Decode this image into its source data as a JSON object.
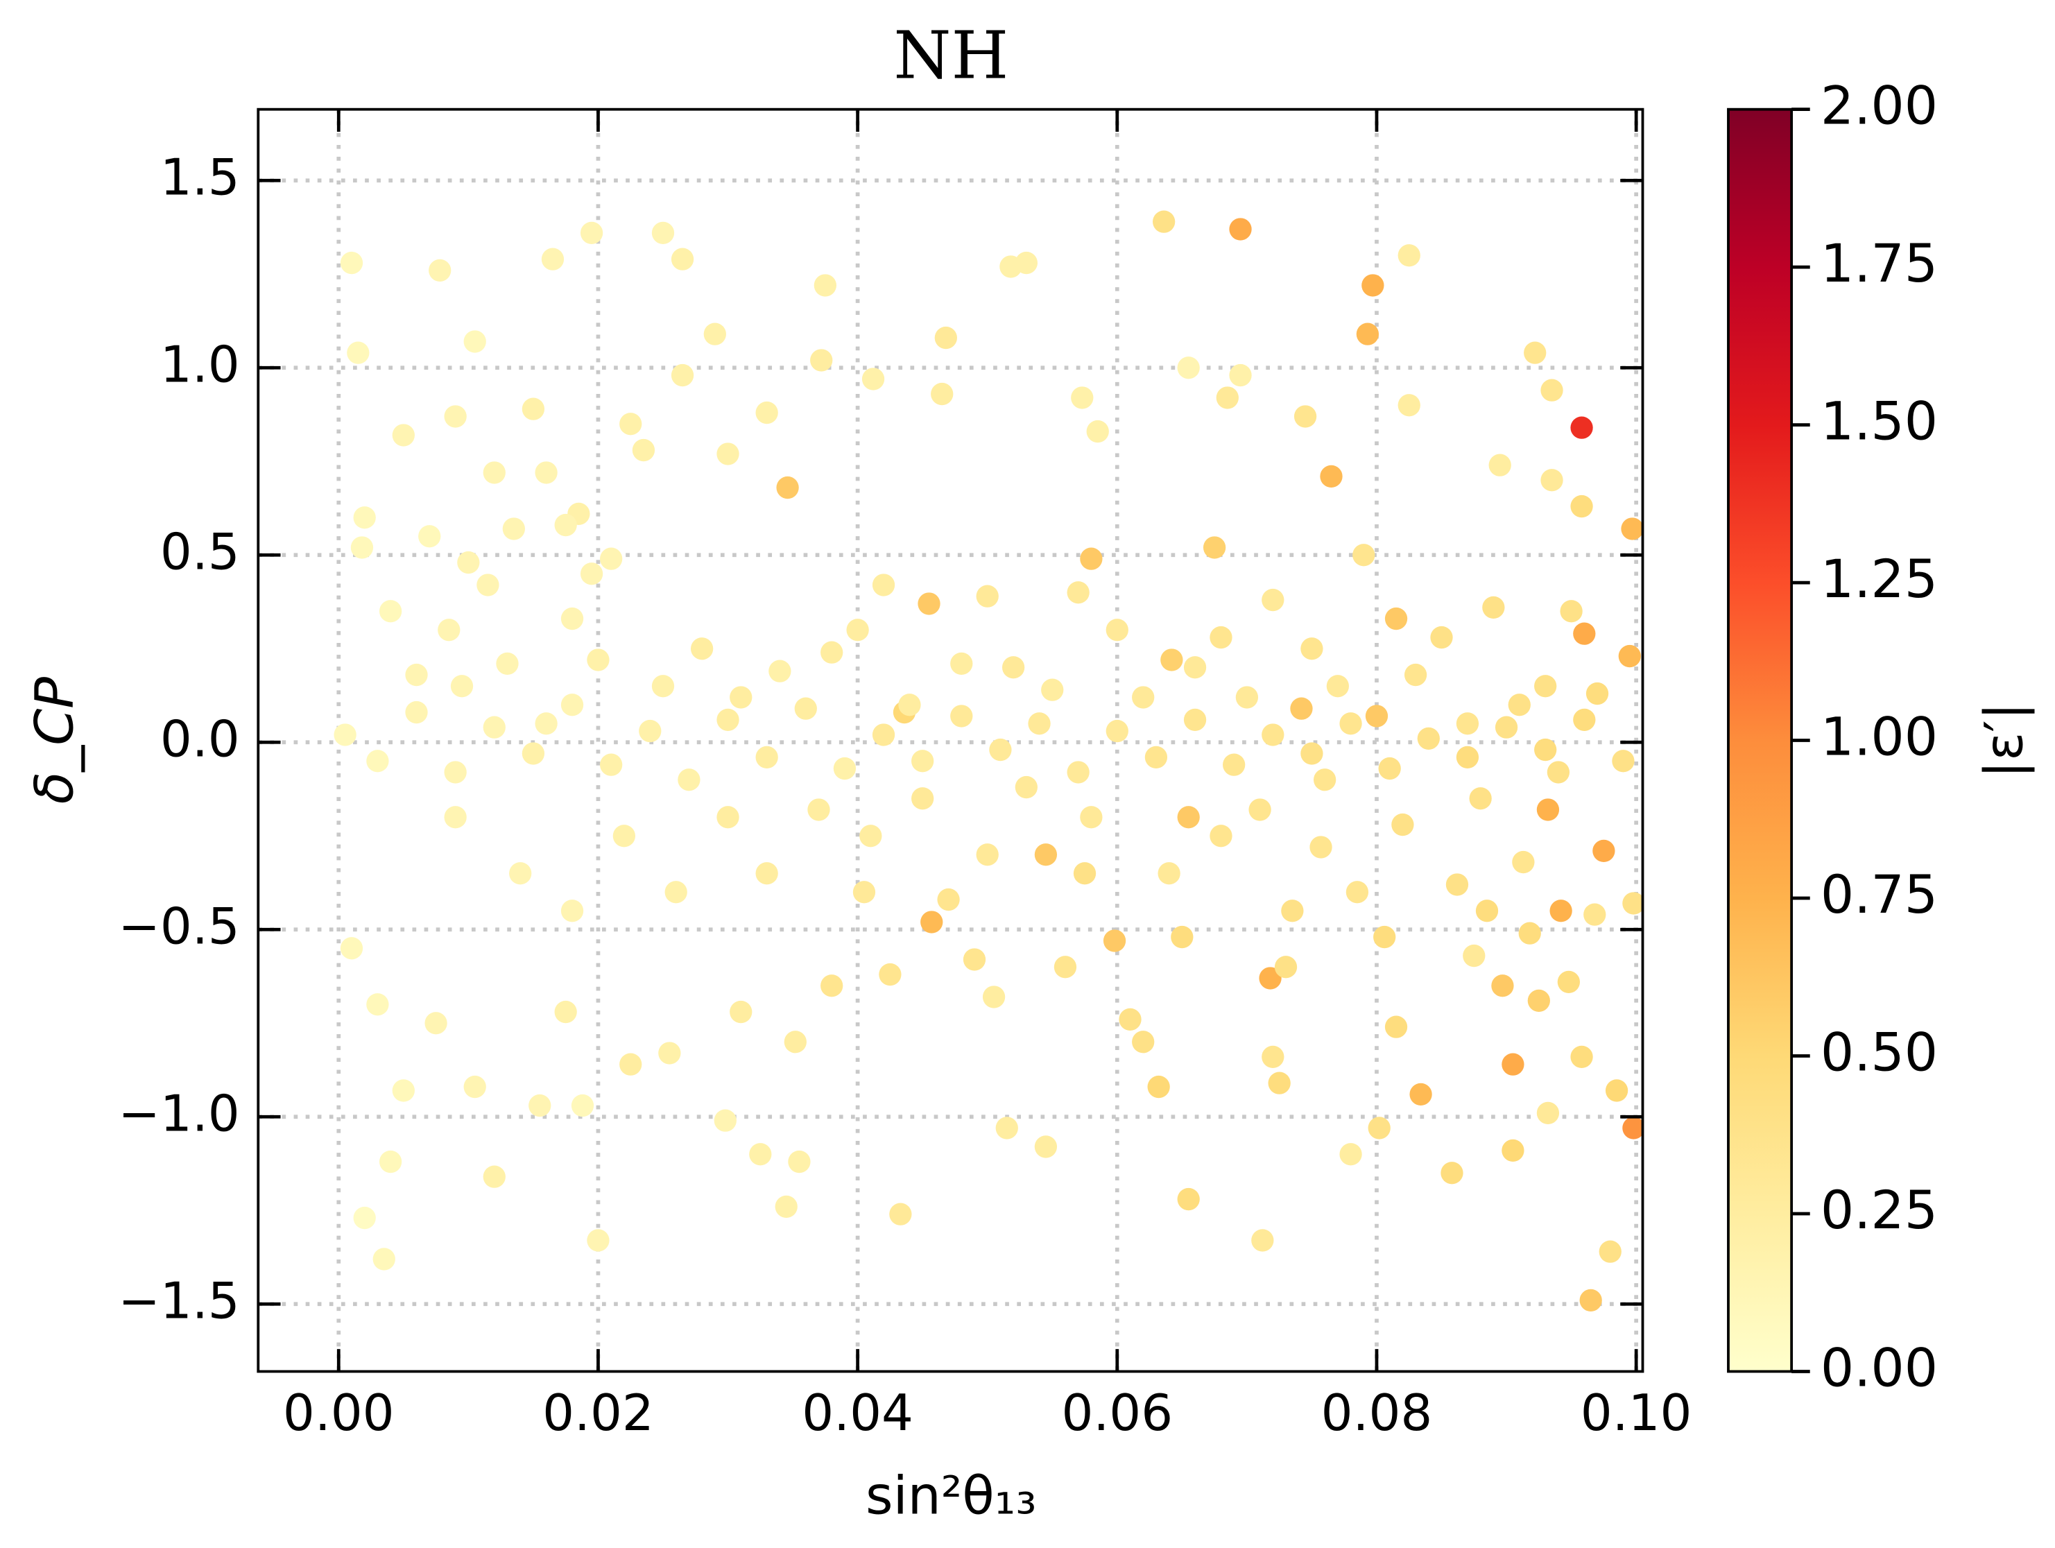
{
  "chart_data": {
    "type": "scatter",
    "title": "NH",
    "x_label": "sin²θ₁₃",
    "y_label": "δ_CP",
    "xlim": [
      -0.0062,
      0.1005
    ],
    "ylim": [
      -1.68,
      1.69
    ],
    "xticks": [
      {
        "value": 0,
        "label": "0.00"
      },
      {
        "value": 0.02,
        "label": "0.02"
      },
      {
        "value": 0.04,
        "label": "0.04"
      },
      {
        "value": 0.06,
        "label": "0.06"
      },
      {
        "value": 0.08,
        "label": "0.08"
      },
      {
        "value": 0.1,
        "label": "0.10"
      }
    ],
    "yticks": [
      {
        "value": -1.5,
        "label": "−1.5"
      },
      {
        "value": -1,
        "label": "−1.0"
      },
      {
        "value": -0.5,
        "label": "−0.5"
      },
      {
        "value": 0,
        "label": "0.0"
      },
      0.5,
      {
        "value": 1,
        "label": "1.0"
      },
      1.5
    ],
    "grid": true,
    "colorbar": {
      "label": "|ε′|",
      "lim": [
        0,
        2
      ],
      "ticks": [
        {
          "value": 0,
          "label": "0.00"
        },
        {
          "value": 0.25,
          "label": "0.25"
        },
        {
          "value": 0.5,
          "label": "0.50"
        },
        {
          "value": 0.75,
          "label": "0.75"
        },
        {
          "value": 1,
          "label": "1.00"
        },
        {
          "value": 1.25,
          "label": "1.25"
        },
        {
          "value": 1.5,
          "label": "1.50"
        },
        {
          "value": 1.75,
          "label": "1.75"
        },
        {
          "value": 2,
          "label": "2.00"
        }
      ],
      "colormap": [
        "#ffffcc",
        "#ffeda0",
        "#fed976",
        "#feb24c",
        "#fd8d3c",
        "#fc4e2a",
        "#e31a1c",
        "#bd0026",
        "#800026"
      ]
    },
    "series": [
      {
        "x": [
          0.0695,
          0.0797,
          0.0793,
          0.0958,
          0.0636,
          0.0765,
          0.0346,
          0.0455,
          0.0457,
          0.0718,
          0.0834,
          0.0905,
          0.0998,
          0.0965,
          0.0975,
          0.0942,
          0.0932,
          0.096,
          0.0995,
          0.0997,
          0.0897,
          0.0905,
          0.0545,
          0.0598,
          0.0655,
          0.0815,
          0.0675,
          0.058,
          0.0642,
          0.0742,
          0.08,
          0.0436,
          0.001,
          0.0015,
          0.002,
          0.0035,
          0.0078,
          0.0105,
          0.0195,
          0.025,
          0.0265,
          0.0165,
          0.0265,
          0.029,
          0.0375,
          0.0372,
          0.03,
          0.033,
          0.0412,
          0.0465,
          0.0468,
          0.0518,
          0.053,
          0.0573,
          0.0585,
          0.0655,
          0.0685,
          0.0695,
          0.0745,
          0.0825,
          0.0825,
          0.0922,
          0.0935,
          0.0895,
          0.0958,
          0.0935,
          0.0018,
          0.005,
          0.009,
          0.012,
          0.015,
          0.0185,
          0.0225,
          0.0235,
          0.0115,
          0.0135,
          0.018,
          0.0085,
          0.004,
          0.006,
          0.0095,
          0.013,
          0.016,
          0.02,
          0.025,
          0.028,
          0.031,
          0.034,
          0.038,
          0.04,
          0.042,
          0.044,
          0.048,
          0.05,
          0.052,
          0.055,
          0.057,
          0.06,
          0.062,
          0.066,
          0.068,
          0.07,
          0.072,
          0.075,
          0.077,
          0.079,
          0.083,
          0.085,
          0.087,
          0.089,
          0.091,
          0.093,
          0.095,
          0.097,
          0.0005,
          0.003,
          0.006,
          0.009,
          0.012,
          0.015,
          0.018,
          0.021,
          0.024,
          0.027,
          0.03,
          0.033,
          0.036,
          0.039,
          0.042,
          0.045,
          0.048,
          0.051,
          0.054,
          0.057,
          0.06,
          0.063,
          0.066,
          0.069,
          0.072,
          0.075,
          0.078,
          0.081,
          0.084,
          0.087,
          0.09,
          0.093,
          0.096,
          0.099,
          0.001,
          0.003,
          0.005,
          0.004,
          0.0075,
          0.0105,
          0.012,
          0.0155,
          0.0175,
          0.0188,
          0.02,
          0.0225,
          0.0255,
          0.0298,
          0.0325,
          0.0345,
          0.0355,
          0.0433,
          0.0352,
          0.031,
          0.038,
          0.0405,
          0.0425,
          0.047,
          0.049,
          0.0505,
          0.0515,
          0.0545,
          0.056,
          0.0575,
          0.061,
          0.062,
          0.0632,
          0.065,
          0.0655,
          0.0712,
          0.072,
          0.0725,
          0.073,
          0.0735,
          0.0757,
          0.078,
          0.0785,
          0.0802,
          0.0806,
          0.0815,
          0.0858,
          0.0862,
          0.0875,
          0.0885,
          0.0913,
          0.0918,
          0.0925,
          0.0932,
          0.0948,
          0.0958,
          0.098,
          0.0985,
          0.0968,
          0.0998,
          0.009,
          0.014,
          0.018,
          0.022,
          0.026,
          0.03,
          0.033,
          0.037,
          0.041,
          0.045,
          0.05,
          0.053,
          0.058,
          0.064,
          0.068,
          0.071,
          0.076,
          0.082,
          0.088,
          0.094,
          0.002,
          0.007,
          0.01,
          0.016,
          0.0195,
          0.021,
          0.0175
        ],
        "values": [
          1.37,
          1.22,
          1.09,
          0.84,
          1.39,
          0.71,
          0.68,
          0.37,
          -0.48,
          -0.63,
          -0.94,
          -0.86,
          -1.03,
          -1.49,
          -0.29,
          -0.45,
          -0.18,
          0.29,
          0.23,
          0.57,
          -0.65,
          -1.09,
          -0.3,
          -0.53,
          -0.2,
          0.33,
          0.52,
          0.49,
          0.22,
          0.09,
          0.07,
          0.08,
          1.28,
          1.04,
          -1.27,
          -1.38,
          1.26,
          1.07,
          1.36,
          1.36,
          1.29,
          1.29,
          0.98,
          1.09,
          1.22,
          1.02,
          0.77,
          0.88,
          0.97,
          0.93,
          1.08,
          1.27,
          1.28,
          0.92,
          0.83,
          1.0,
          0.92,
          0.98,
          0.87,
          1.3,
          0.9,
          1.04,
          0.94,
          0.74,
          0.63,
          0.7,
          0.52,
          0.82,
          0.87,
          0.72,
          0.89,
          0.61,
          0.85,
          0.78,
          0.42,
          0.57,
          0.33,
          0.3,
          0.35,
          0.18,
          0.15,
          0.21,
          0.05,
          0.22,
          0.15,
          0.25,
          0.12,
          0.19,
          0.24,
          0.3,
          0.42,
          0.1,
          0.21,
          0.39,
          0.2,
          0.14,
          0.4,
          0.3,
          0.12,
          0.2,
          0.28,
          0.12,
          0.38,
          0.25,
          0.15,
          0.5,
          0.18,
          0.28,
          0.05,
          0.36,
          0.1,
          0.15,
          0.35,
          0.13,
          0.02,
          -0.05,
          0.08,
          -0.08,
          0.04,
          -0.03,
          0.1,
          -0.06,
          0.03,
          -0.1,
          0.06,
          -0.04,
          0.09,
          -0.07,
          0.02,
          -0.05,
          0.07,
          -0.02,
          0.05,
          -0.08,
          0.03,
          -0.04,
          0.06,
          -0.06,
          0.02,
          -0.03,
          0.05,
          -0.07,
          0.01,
          -0.04,
          0.04,
          -0.02,
          0.06,
          -0.05,
          -0.55,
          -0.7,
          -0.93,
          -1.12,
          -0.75,
          -0.92,
          -1.16,
          -0.97,
          -0.72,
          -0.97,
          -1.33,
          -0.86,
          -0.83,
          -1.01,
          -1.1,
          -1.24,
          -1.12,
          -1.26,
          -0.8,
          -0.72,
          -0.65,
          -0.4,
          -0.62,
          -0.42,
          -0.58,
          -0.68,
          -1.03,
          -1.08,
          -0.6,
          -0.35,
          -0.74,
          -0.8,
          -0.92,
          -0.52,
          -1.22,
          -1.33,
          -0.84,
          -0.91,
          -0.6,
          -0.45,
          -0.28,
          -1.1,
          -0.4,
          -1.03,
          -0.52,
          -0.76,
          -1.15,
          -0.38,
          -0.57,
          -0.45,
          -0.32,
          -0.51,
          -0.69,
          -0.99,
          -0.64,
          -0.84,
          -1.36,
          -0.93,
          -0.46,
          -0.43,
          -0.2,
          -0.35,
          -0.45,
          -0.25,
          -0.4,
          -0.2,
          -0.35,
          -0.18,
          -0.25,
          -0.15,
          -0.3,
          -0.12,
          -0.2,
          -0.35,
          -0.25,
          -0.18,
          -0.1,
          -0.22,
          -0.15,
          -0.08,
          0.6,
          0.55,
          0.48,
          0.72,
          0.45,
          0.49,
          0.58
        ],
        "color_values": [
          0.8,
          0.75,
          0.7,
          1.4,
          0.4,
          0.7,
          0.6,
          0.6,
          0.7,
          0.75,
          0.7,
          0.8,
          0.95,
          0.6,
          0.8,
          0.75,
          0.75,
          0.8,
          0.7,
          0.7,
          0.6,
          0.5,
          0.6,
          0.6,
          0.6,
          0.6,
          0.55,
          0.6,
          0.55,
          0.6,
          0.6,
          0.5,
          0.1,
          0.1,
          0.05,
          0.1,
          0.15,
          0.1,
          0.15,
          0.15,
          0.2,
          0.15,
          0.2,
          0.2,
          0.2,
          0.25,
          0.2,
          0.2,
          0.2,
          0.25,
          0.3,
          0.2,
          0.2,
          0.2,
          0.2,
          0.15,
          0.3,
          0.2,
          0.35,
          0.25,
          0.25,
          0.35,
          0.35,
          0.25,
          0.45,
          0.3,
          0.1,
          0.15,
          0.15,
          0.15,
          0.2,
          0.2,
          0.2,
          0.2,
          0.15,
          0.15,
          0.15,
          0.15,
          0.1,
          0.15,
          0.15,
          0.15,
          0.15,
          0.2,
          0.2,
          0.25,
          0.25,
          0.2,
          0.25,
          0.25,
          0.25,
          0.25,
          0.25,
          0.3,
          0.3,
          0.25,
          0.3,
          0.3,
          0.3,
          0.3,
          0.35,
          0.3,
          0.3,
          0.35,
          0.3,
          0.35,
          0.35,
          0.4,
          0.35,
          0.4,
          0.4,
          0.4,
          0.4,
          0.45,
          0.1,
          0.1,
          0.15,
          0.15,
          0.15,
          0.2,
          0.15,
          0.2,
          0.2,
          0.2,
          0.25,
          0.25,
          0.25,
          0.2,
          0.3,
          0.25,
          0.3,
          0.3,
          0.3,
          0.3,
          0.3,
          0.35,
          0.35,
          0.35,
          0.35,
          0.4,
          0.35,
          0.4,
          0.4,
          0.45,
          0.4,
          0.45,
          0.45,
          0.4,
          0.1,
          0.1,
          0.1,
          0.1,
          0.15,
          0.15,
          0.2,
          0.15,
          0.2,
          0.1,
          0.15,
          0.25,
          0.2,
          0.15,
          0.2,
          0.2,
          0.2,
          0.3,
          0.25,
          0.25,
          0.35,
          0.3,
          0.35,
          0.35,
          0.35,
          0.25,
          0.25,
          0.25,
          0.35,
          0.4,
          0.4,
          0.4,
          0.5,
          0.45,
          0.45,
          0.3,
          0.35,
          0.45,
          0.4,
          0.4,
          0.35,
          0.25,
          0.35,
          0.4,
          0.45,
          0.45,
          0.45,
          0.4,
          0.3,
          0.45,
          0.35,
          0.45,
          0.55,
          0.3,
          0.45,
          0.45,
          0.4,
          0.5,
          0.35,
          0.4,
          0.15,
          0.15,
          0.15,
          0.2,
          0.2,
          0.25,
          0.25,
          0.25,
          0.25,
          0.3,
          0.3,
          0.3,
          0.3,
          0.3,
          0.35,
          0.35,
          0.35,
          0.4,
          0.4,
          0.4,
          0.1,
          0.1,
          0.15,
          0.15,
          0.15,
          0.15,
          0.15
        ]
      }
    ]
  }
}
